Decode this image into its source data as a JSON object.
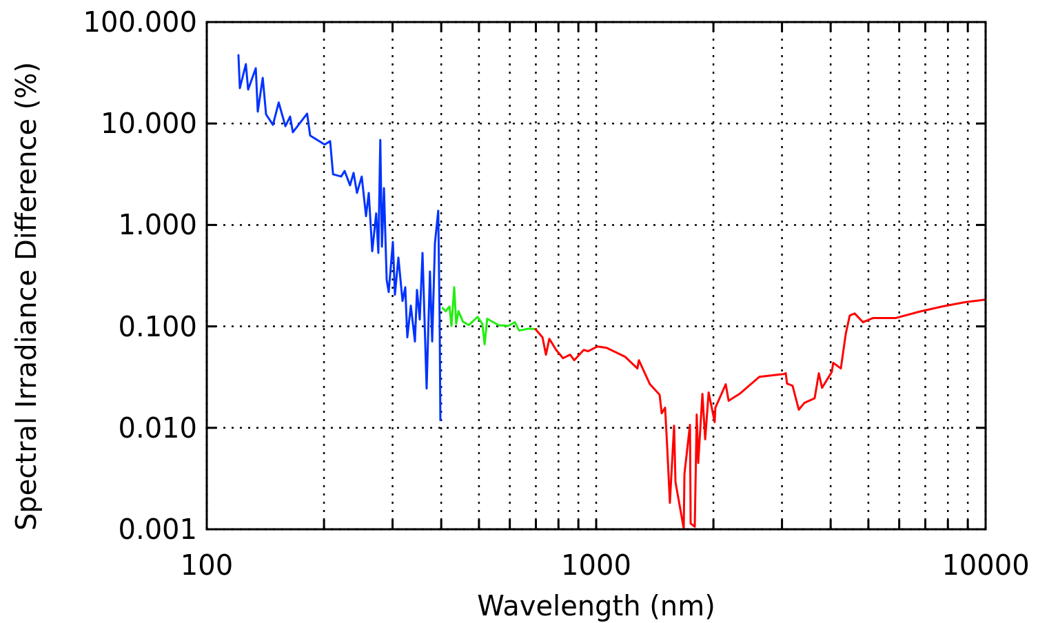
{
  "chart_data": {
    "type": "line",
    "xlabel": "Wavelength (nm)",
    "ylabel": "Spectral Irradiance Difference (%)",
    "log": "xy",
    "grid": true,
    "line_style": "solid",
    "marker": "none",
    "xlim": [
      100,
      10000
    ],
    "ylim": [
      0.001,
      100
    ],
    "xticks": [
      100,
      {
        "value": 200,
        "label": null
      },
      {
        "value": 300,
        "label": null
      },
      {
        "value": 400,
        "label": null
      },
      {
        "value": 500,
        "label": null
      },
      {
        "value": 600,
        "label": null
      },
      {
        "value": 700,
        "label": null
      },
      {
        "value": 800,
        "label": null
      },
      {
        "value": 900,
        "label": null
      },
      1000,
      {
        "value": 2000,
        "label": null
      },
      {
        "value": 3000,
        "label": null
      },
      {
        "value": 4000,
        "label": null
      },
      {
        "value": 5000,
        "label": null
      },
      {
        "value": 6000,
        "label": null
      },
      {
        "value": 7000,
        "label": null
      },
      {
        "value": 8000,
        "label": null
      },
      {
        "value": 9000,
        "label": null
      },
      10000
    ],
    "yticks": [
      {
        "value": 0.001,
        "label": "0.001"
      },
      {
        "value": 0.01,
        "label": "0.010"
      },
      {
        "value": 0.1,
        "label": "0.100"
      },
      {
        "value": 1,
        "label": "1.000"
      },
      {
        "value": 10,
        "label": "10.000"
      },
      {
        "value": 100,
        "label": "100.000"
      }
    ],
    "series": [
      {
        "color": "#0033ff",
        "x": [
          120.6,
          121.6,
          126,
          127.7,
          133.6,
          135.2,
          139.2,
          142,
          147.9,
          153,
          159.2,
          163.7,
          166.4,
          181,
          184.3,
          200.8,
          207.4,
          211,
          221.3,
          226,
          233.3,
          238.2,
          243.1,
          250,
          256.4,
          260.6,
          266,
          272.3,
          275.8,
          279,
          281.7,
          285.1,
          289.7,
          293.2,
          300.5,
          304.2,
          310.5,
          318.2,
          323.4,
          327.3,
          334.2,
          342.4,
          346.6,
          352.3,
          358.1,
          366.9,
          374.2,
          379.2,
          385.4,
          393,
          396.4,
          398
        ],
        "values": [
          47.2,
          22.3,
          38.5,
          21.6,
          35.1,
          13.1,
          28.2,
          12.3,
          9.7,
          16.1,
          9.4,
          11.7,
          8.2,
          12.5,
          7.6,
          6.2,
          6.7,
          3.16,
          3.0,
          3.4,
          2.46,
          3.26,
          2.07,
          3.0,
          1.22,
          2.07,
          0.55,
          1.3,
          0.53,
          6.9,
          0.61,
          2.31,
          0.289,
          0.218,
          0.68,
          0.205,
          0.476,
          0.178,
          0.243,
          0.078,
          0.16,
          0.071,
          0.229,
          0.117,
          0.53,
          0.0244,
          0.348,
          0.071,
          0.66,
          1.38,
          0.105,
          0.0119
        ]
      },
      {
        "color": "#22ee11",
        "x": [
          403,
          411,
          420,
          425,
          432,
          437,
          443,
          455,
          471,
          496,
          510,
          517,
          525,
          561,
          594,
          618,
          634,
          671,
          698
        ],
        "values": [
          0.152,
          0.141,
          0.157,
          0.101,
          0.243,
          0.106,
          0.141,
          0.111,
          0.103,
          0.124,
          0.106,
          0.0665,
          0.119,
          0.103,
          0.101,
          0.11,
          0.091,
          0.095,
          0.094
        ]
      },
      {
        "color": "#ff0000",
        "x": [
          698,
          728,
          743,
          758,
          789,
          822,
          857,
          878,
          929,
          953,
          1008,
          1063,
          1186,
          1276,
          1287,
          1374,
          1455,
          1473,
          1503,
          1521,
          1546,
          1585,
          1598,
          1678,
          1685,
          1741,
          1748,
          1791,
          1812,
          1828,
          1874,
          1905,
          1944,
          2015,
          2023,
          2151,
          2188,
          2334,
          2626,
          3030,
          3068,
          3090,
          3193,
          3313,
          3424,
          3639,
          3730,
          3802,
          4027,
          4061,
          4249,
          4373,
          4478,
          4610,
          4842,
          5144,
          5888,
          6731,
          7729,
          8852,
          10000
        ],
        "values": [
          0.094,
          0.078,
          0.0526,
          0.0754,
          0.0586,
          0.0486,
          0.0526,
          0.0464,
          0.0586,
          0.0569,
          0.0634,
          0.0615,
          0.0502,
          0.0385,
          0.0464,
          0.0269,
          0.0212,
          0.0139,
          0.0158,
          0.0067,
          0.00182,
          0.0105,
          0.00292,
          0.00102,
          0.0035,
          0.0107,
          0.00114,
          0.00106,
          0.0135,
          0.0045,
          0.0216,
          0.0077,
          0.0223,
          0.0114,
          0.0158,
          0.0269,
          0.0185,
          0.0216,
          0.0319,
          0.0339,
          0.0345,
          0.0273,
          0.026,
          0.0151,
          0.0176,
          0.0196,
          0.0345,
          0.0248,
          0.0356,
          0.0437,
          0.0385,
          0.0841,
          0.128,
          0.134,
          0.11,
          0.121,
          0.121,
          0.139,
          0.157,
          0.173,
          0.184
        ]
      }
    ]
  }
}
